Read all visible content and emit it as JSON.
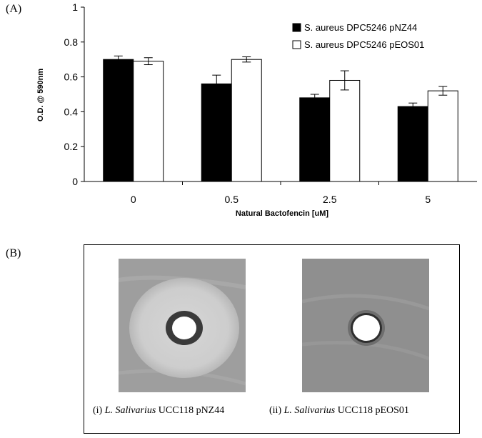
{
  "panels": {
    "a_label": "(A)",
    "b_label": "(B)"
  },
  "chart_data": {
    "type": "bar",
    "xlabel": "Natural Bactofencin [uM]",
    "ylabel": "O.D. @ 590nm",
    "categories": [
      "0",
      "0.5",
      "2.5",
      "5"
    ],
    "ylim": [
      0,
      1
    ],
    "yticks": [
      "0",
      "0.2",
      "0.4",
      "0.6",
      "0.8",
      "1"
    ],
    "grid": false,
    "legend_position": "top-right",
    "series": [
      {
        "name": "S. aureus DPC5246 pNZ44",
        "values": [
          0.7,
          0.56,
          0.48,
          0.43
        ],
        "errors": [
          0.02,
          0.05,
          0.02,
          0.02
        ],
        "color": "#000000"
      },
      {
        "name": "S. aureus DPC5246 pEOS01",
        "values": [
          0.69,
          0.7,
          0.58,
          0.52
        ],
        "errors": [
          0.02,
          0.015,
          0.055,
          0.025
        ],
        "color": "#ffffff"
      }
    ]
  },
  "figure_b": {
    "caption_i_prefix": "(i) ",
    "caption_i_species": "L. Salivarius",
    "caption_i_strain": " UCC118 pNZ44",
    "caption_ii_prefix": "(ii) ",
    "caption_ii_species": "L. Salivarius",
    "caption_ii_strain": " UCC118 pEOS01"
  }
}
